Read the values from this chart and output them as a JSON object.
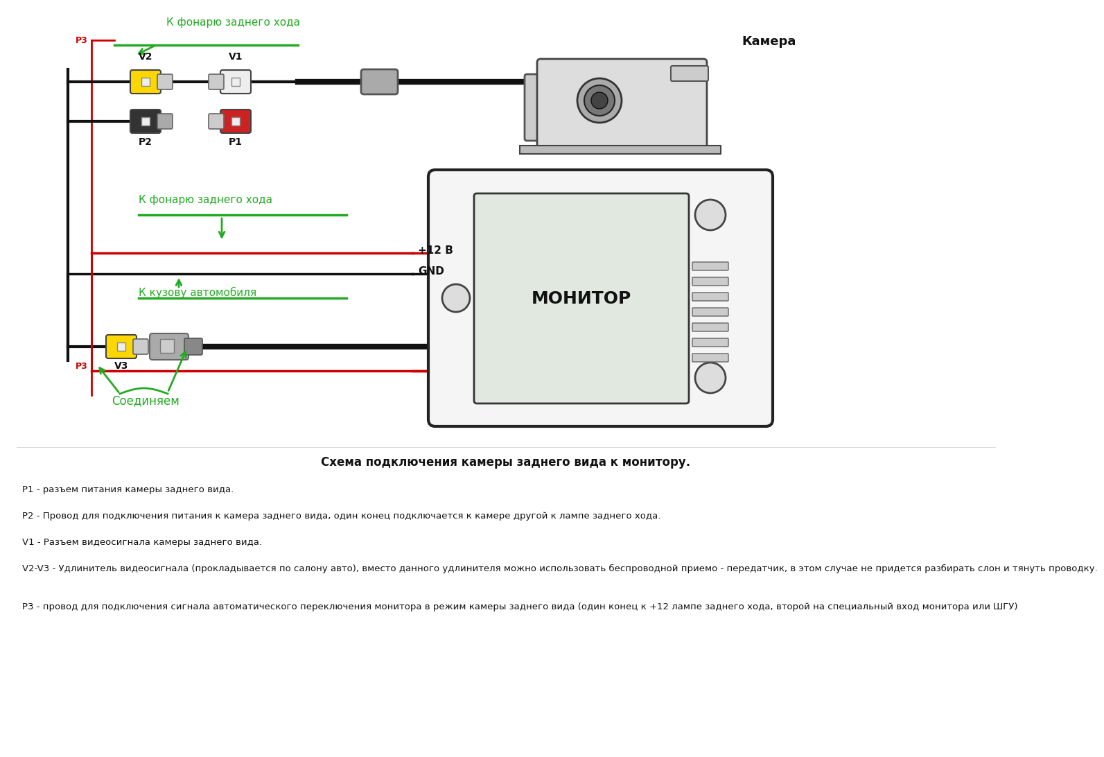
{
  "bg_color": "#ffffff",
  "fig_width": 14.4,
  "fig_height": 10.72,
  "green_color": "#22aa22",
  "red_color": "#cc0000",
  "black_color": "#111111",
  "annotations_top_label": "К фонарю заднего хода",
  "annotations_mid_label1": "К фонарю заднего хода",
  "annotations_mid_label2": "К кузову автомобиля",
  "annotations_bot_label": "Соединяем",
  "plus12_label": "+12 В",
  "gnd_label": "GND",
  "camera_label": "Камера",
  "monitor_label": "МОНИТОР",
  "v1_label": "V1",
  "v2_label": "V2",
  "v3_label": "V3",
  "p1_label": "P1",
  "p2_label": "P2",
  "p3_label": "P3",
  "desc_title": "Схема подключения камеры заднего вида к монитору.",
  "desc_lines": [
    "P1 - разъем питания камеры заднего вида.",
    "P2 - Провод для подключения питания к камера заднего вида, один конец подключается к камере другой к лампе заднего хода.",
    "V1 - Разъем видеосигнала камеры заднего вида.",
    "V2-V3 - Удлинитель видеосигнала (прокладывается по салону авто), вместо данного удлинителя можно использовать беспроводной приемо - передатчик, в этом случае не придется разбирать слон и тянуть проводку.",
    "P3 - провод для подключения сигнала автоматического переключения монитора в режим камеры заднего вида (один конец к +12 лампе заднего хода, второй на специальный вход монитора или ШГУ)"
  ]
}
